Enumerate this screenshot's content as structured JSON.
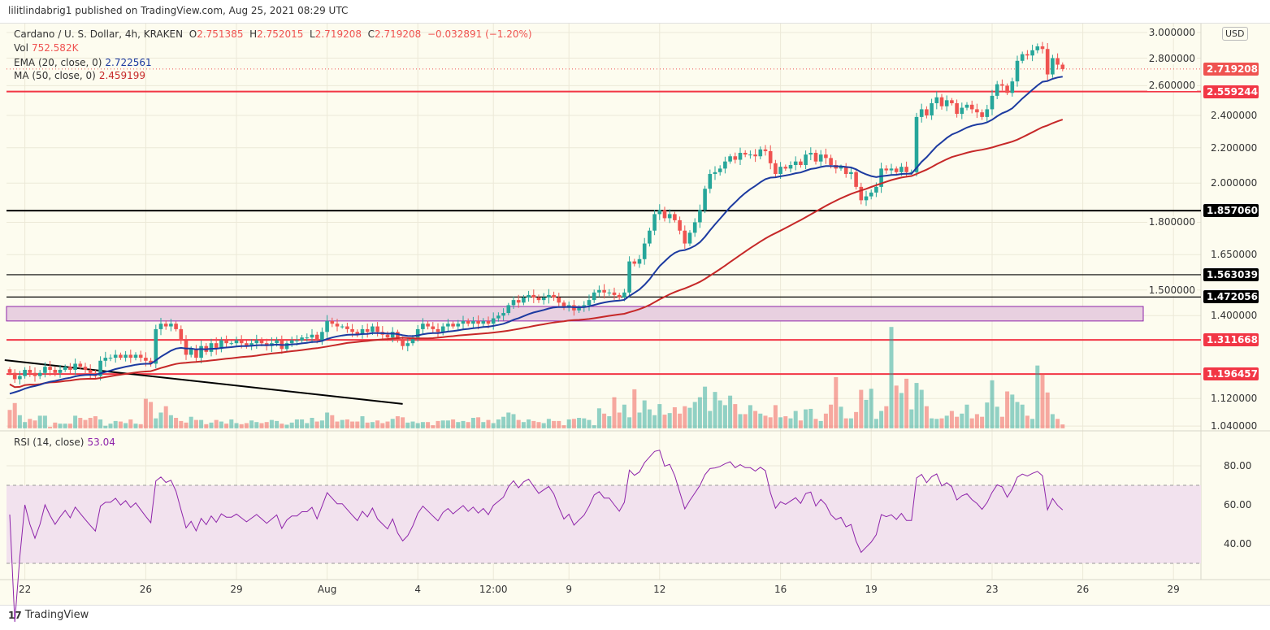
{
  "header": {
    "published": "lilitlindabrig1 published on TradingView.com, Aug 25, 2021 08:29 UTC"
  },
  "legend": {
    "symbol": "Cardano / U. S. Dollar, 4h, KRAKEN",
    "o_label": "O",
    "o": "2.751385",
    "h_label": "H",
    "h": "2.752015",
    "l_label": "L",
    "l": "2.719208",
    "c_label": "C",
    "c": "2.719208",
    "change": "−0.032891 (−1.20%)",
    "vol_label": "Vol",
    "vol": "752.582K",
    "ema_label": "EMA (20, close, 0)",
    "ema": "2.722561",
    "ma_label": "MA (50, close, 0)",
    "ma": "2.459199",
    "rsi_label": "RSI (14, close)",
    "rsi": "53.04"
  },
  "currency": "USD",
  "footer": {
    "logo": "TradingView"
  },
  "colors": {
    "up": "#26a69a",
    "down": "#ef5350",
    "ema": "#1c3aa0",
    "ma": "#c62828",
    "rsi": "#8e24aa",
    "level_red": "#f23645",
    "level_black": "#000000",
    "zone": "#e8d0e0",
    "background": "#fdfcef"
  },
  "chart_data": {
    "type": "candlestick",
    "timeframe": "4h",
    "first_candle": "Jul 21 12:00",
    "price_axis": {
      "scale": "log",
      "range": [
        1.03,
        3.05
      ],
      "ticks": [
        "3.000000",
        "2.800000",
        "2.600000",
        "2.400000",
        "2.200000",
        "2.000000",
        "1.800000",
        "1.650000",
        "1.500000",
        "1.400000",
        "1.120000",
        "1.040000"
      ]
    },
    "time_axis": [
      {
        "text": "22",
        "t": "Jul 22 00:00"
      },
      {
        "text": "26",
        "t": "Jul 26 00:00"
      },
      {
        "text": "29",
        "t": "Jul 29 00:00"
      },
      {
        "text": "Aug",
        "t": "Aug 1 00:00"
      },
      {
        "text": "4",
        "t": "Aug 4 00:00"
      },
      {
        "text": "12:00",
        "t": "Aug 6 12:00"
      },
      {
        "text": "9",
        "t": "Aug 9 00:00"
      },
      {
        "text": "12",
        "t": "Aug 12 00:00"
      },
      {
        "text": "16",
        "t": "Aug 16 00:00"
      },
      {
        "text": "19",
        "t": "Aug 19 00:00"
      },
      {
        "text": "23",
        "t": "Aug 23 00:00"
      },
      {
        "text": "26",
        "t": "Aug 26 00:00"
      },
      {
        "text": "29",
        "t": "Aug 29 00:00"
      }
    ],
    "closes": [
      1.2,
      1.18,
      1.19,
      1.21,
      1.2,
      1.19,
      1.2,
      1.22,
      1.21,
      1.2,
      1.21,
      1.22,
      1.21,
      1.23,
      1.22,
      1.21,
      1.2,
      1.19,
      1.24,
      1.25,
      1.25,
      1.26,
      1.25,
      1.26,
      1.25,
      1.26,
      1.25,
      1.24,
      1.23,
      1.35,
      1.37,
      1.36,
      1.37,
      1.35,
      1.31,
      1.26,
      1.28,
      1.25,
      1.29,
      1.27,
      1.3,
      1.28,
      1.31,
      1.3,
      1.3,
      1.31,
      1.3,
      1.29,
      1.3,
      1.31,
      1.3,
      1.29,
      1.3,
      1.31,
      1.28,
      1.3,
      1.31,
      1.31,
      1.32,
      1.32,
      1.33,
      1.31,
      1.34,
      1.38,
      1.37,
      1.36,
      1.36,
      1.35,
      1.34,
      1.33,
      1.35,
      1.34,
      1.36,
      1.34,
      1.33,
      1.32,
      1.34,
      1.31,
      1.29,
      1.3,
      1.32,
      1.35,
      1.37,
      1.36,
      1.35,
      1.34,
      1.36,
      1.37,
      1.36,
      1.37,
      1.38,
      1.37,
      1.38,
      1.37,
      1.38,
      1.37,
      1.39,
      1.4,
      1.41,
      1.44,
      1.46,
      1.45,
      1.47,
      1.48,
      1.47,
      1.46,
      1.47,
      1.48,
      1.47,
      1.45,
      1.43,
      1.44,
      1.42,
      1.43,
      1.44,
      1.46,
      1.49,
      1.5,
      1.49,
      1.49,
      1.48,
      1.47,
      1.49,
      1.62,
      1.61,
      1.63,
      1.7,
      1.76,
      1.84,
      1.86,
      1.82,
      1.84,
      1.81,
      1.76,
      1.7,
      1.75,
      1.8,
      1.86,
      1.97,
      2.05,
      2.06,
      2.08,
      2.12,
      2.15,
      2.13,
      2.17,
      2.16,
      2.16,
      2.15,
      2.19,
      2.18,
      2.11,
      2.05,
      2.09,
      2.08,
      2.1,
      2.12,
      2.1,
      2.16,
      2.17,
      2.12,
      2.16,
      2.14,
      2.1,
      2.08,
      2.09,
      2.05,
      2.06,
      1.98,
      1.91,
      1.93,
      1.95,
      1.98,
      2.08,
      2.07,
      2.08,
      2.06,
      2.09,
      2.06,
      2.06,
      2.39,
      2.44,
      2.4,
      2.48,
      2.52,
      2.46,
      2.5,
      2.48,
      2.41,
      2.45,
      2.47,
      2.44,
      2.42,
      2.39,
      2.44,
      2.53,
      2.61,
      2.6,
      2.55,
      2.63,
      2.78,
      2.83,
      2.82,
      2.86,
      2.89,
      2.87,
      2.68,
      2.8,
      2.751385,
      2.719208
    ],
    "volumes_millions": [
      3.5,
      4.8,
      2.5,
      1.2,
      1.8,
      1.5,
      2.4,
      2.4,
      0.3,
      1.1,
      0.9,
      0.9,
      0.9,
      2.4,
      2.0,
      1.6,
      2.0,
      2.3,
      1.7,
      0.5,
      0.9,
      1.4,
      1.3,
      1.0,
      1.7,
      0.9,
      0.8,
      5.6,
      5.0,
      1.9,
      3.0,
      4.2,
      2.5,
      2.0,
      1.4,
      1.1,
      2.2,
      1.6,
      1.6,
      0.8,
      1.1,
      1.6,
      1.3,
      0.9,
      1.7,
      1.0,
      0.8,
      1.0,
      1.5,
      1.2,
      1.0,
      1.2,
      1.6,
      1.4,
      0.9,
      0.7,
      1.1,
      1.7,
      1.7,
      1.0,
      2.0,
      1.3,
      1.5,
      3.0,
      2.5,
      1.3,
      1.6,
      1.7,
      1.3,
      1.3,
      2.3,
      1.1,
      1.2,
      1.5,
      1.0,
      1.3,
      1.8,
      2.3,
      2.1,
      1.1,
      1.3,
      1.0,
      1.2,
      1.2,
      0.6,
      1.4,
      1.5,
      1.5,
      1.7,
      1.2,
      1.4,
      1.2,
      2.0,
      2.1,
      1.2,
      1.6,
      1.0,
      1.7,
      2.2,
      3.0,
      2.7,
      1.6,
      1.2,
      1.7,
      1.4,
      1.2,
      1.0,
      1.8,
      1.4,
      1.4,
      0.6,
      1.7,
      1.8,
      2.0,
      1.9,
      1.6,
      0.6,
      3.8,
      2.8,
      2.3,
      5.9,
      3.0,
      4.5,
      2.1,
      7.4,
      3.0,
      5.3,
      3.6,
      2.5,
      4.6,
      2.6,
      2.9,
      4.0,
      2.8,
      4.2,
      3.9,
      5.0,
      5.9,
      7.9,
      3.3,
      6.9,
      5.3,
      4.4,
      6.2,
      4.6,
      2.7,
      2.7,
      4.4,
      3.3,
      2.8,
      2.4,
      2.1,
      4.4,
      2.1,
      2.3,
      1.9,
      3.3,
      1.5,
      3.6,
      3.7,
      1.8,
      1.4,
      2.8,
      4.5,
      9.7,
      4.1,
      1.9,
      1.9,
      3.1,
      7.3,
      5.4,
      7.5,
      1.8,
      3.3,
      4.2,
      19.2,
      8.1,
      6.7,
      9.4,
      3.6,
      8.6,
      7.3,
      4.2,
      1.9,
      1.8,
      1.9,
      2.4,
      3.3,
      2.2,
      2.8,
      4.5,
      1.9,
      2.7,
      2.2,
      4.9,
      9.1,
      4.1,
      2.2,
      7.0,
      6.4,
      5.0,
      4.5,
      2.4,
      1.8,
      11.9,
      10.4,
      6.8,
      2.7,
      1.8,
      0.75
    ],
    "indicators": {
      "ema_period": 20,
      "ma_period": 50,
      "rsi_period": 14
    },
    "levels": [
      {
        "price": 2.559244,
        "label": "2.559244",
        "color": "red",
        "weight": "bold"
      },
      {
        "price": 1.85706,
        "label": "1.857060",
        "color": "black",
        "weight": "bold"
      },
      {
        "price": 1.563039,
        "label": "1.563039",
        "color": "black",
        "weight": "thin"
      },
      {
        "price": 1.472056,
        "label": "1.472056",
        "color": "black",
        "weight": "thin"
      },
      {
        "price": 1.311668,
        "label": "1.311668",
        "color": "red",
        "weight": "bold"
      },
      {
        "price": 1.196457,
        "label": "1.196457",
        "color": "red",
        "weight": "bold"
      }
    ],
    "last_price": {
      "price": 2.719208,
      "label": "2.719208"
    },
    "zone": {
      "low": 1.38,
      "high": 1.435,
      "end": "Aug 28 00:00"
    },
    "trendline": {
      "start": [
        "Jul 21 08:00",
        1.242
      ],
      "end": [
        "Aug 3 12:00",
        1.104
      ]
    },
    "rsi_axis": {
      "ticks": [
        "80.00",
        "60.00",
        "40.00"
      ],
      "upper_band": 70,
      "lower_band": 30
    }
  }
}
